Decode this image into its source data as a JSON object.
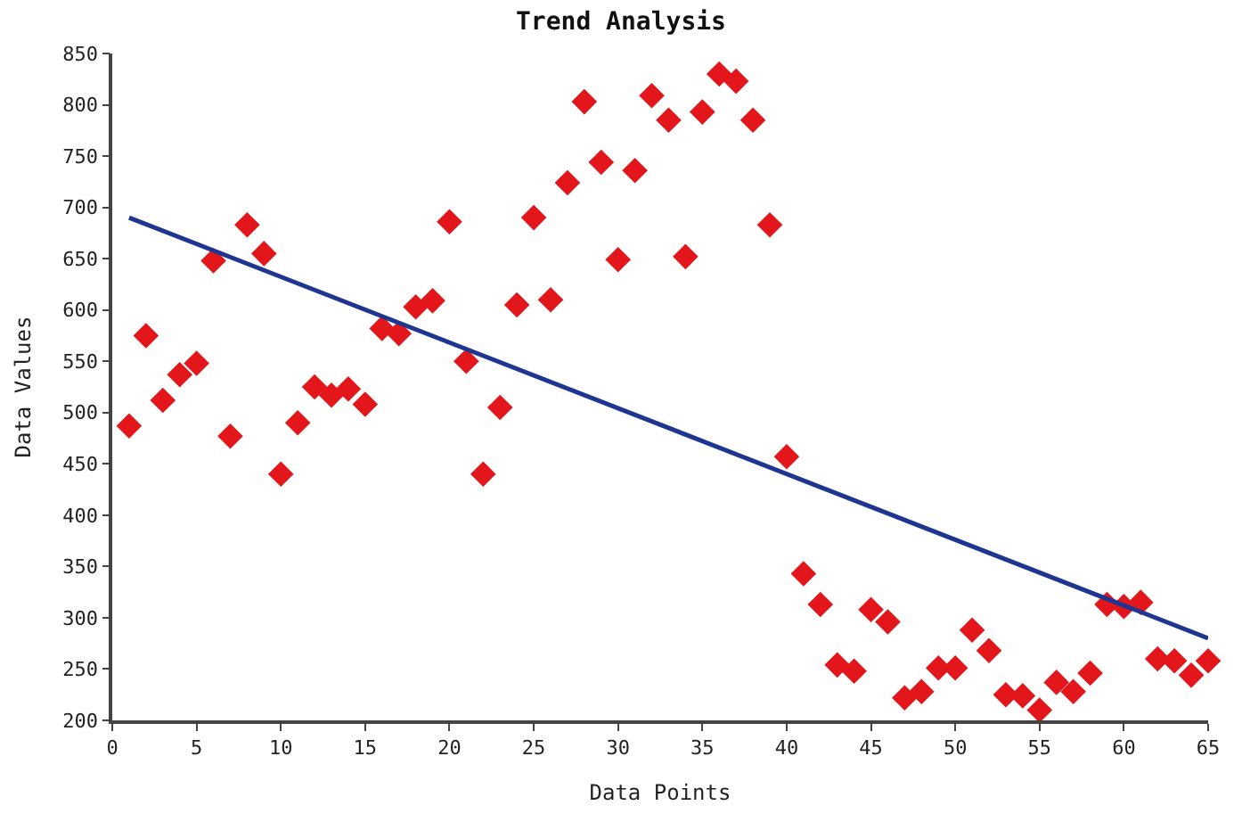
{
  "chart_data": {
    "type": "scatter",
    "title": "Trend Analysis",
    "xlabel": "Data Points",
    "ylabel": "Data Values",
    "x": [
      1,
      2,
      3,
      4,
      5,
      6,
      7,
      8,
      9,
      10,
      11,
      12,
      13,
      14,
      15,
      16,
      17,
      18,
      19,
      20,
      21,
      22,
      23,
      24,
      25,
      26,
      27,
      28,
      29,
      30,
      31,
      32,
      33,
      34,
      35,
      36,
      37,
      38,
      39,
      40,
      41,
      42,
      43,
      44,
      45,
      46,
      47,
      48,
      49,
      50,
      51,
      52,
      53,
      54,
      55,
      56,
      57,
      58,
      59,
      60,
      61,
      62,
      63,
      64,
      65
    ],
    "series": [
      {
        "color": "#e3161b",
        "marker": "diamond",
        "values": [
          487,
          575,
          512,
          537,
          548,
          648,
          477,
          683,
          655,
          440,
          490,
          525,
          517,
          523,
          508,
          582,
          577,
          603,
          609,
          686,
          550,
          440,
          505,
          605,
          690,
          610,
          724,
          803,
          744,
          649,
          736,
          809,
          785,
          652,
          793,
          830,
          823,
          785,
          683,
          457,
          343,
          313,
          254,
          248,
          308,
          296,
          222,
          228,
          251,
          251,
          288,
          268,
          225,
          224,
          210,
          237,
          228,
          246,
          313,
          311,
          315,
          260,
          258,
          244,
          258
        ]
      },
      {
        "type": "line",
        "color": "#1f3592",
        "x": [
          1,
          65
        ],
        "values": [
          690,
          280
        ]
      }
    ],
    "xlim": [
      0,
      65
    ],
    "xticks": [
      0,
      5,
      10,
      15,
      20,
      25,
      30,
      35,
      40,
      45,
      50,
      55,
      60,
      65
    ],
    "ylim": [
      200,
      850
    ],
    "yticks": [
      200,
      250,
      300,
      350,
      400,
      450,
      500,
      550,
      600,
      650,
      700,
      750,
      800,
      850
    ],
    "legend": false
  }
}
